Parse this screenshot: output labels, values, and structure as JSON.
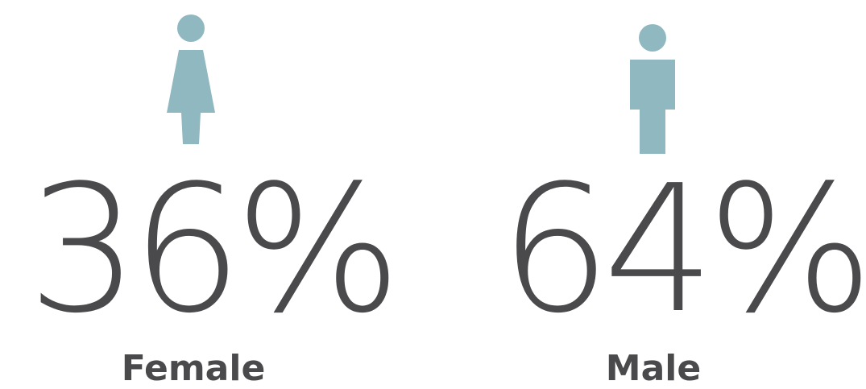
{
  "colors": {
    "icon": "#8fb8c1",
    "text": "#4a4a4c",
    "background": "#ffffff"
  },
  "chart_data": {
    "type": "pie",
    "categories": [
      "Female",
      "Male"
    ],
    "values": [
      36,
      64
    ],
    "value_labels": [
      "36%",
      "64%"
    ],
    "icons": [
      "female-person-icon",
      "male-person-icon"
    ],
    "title": "",
    "xlabel": "",
    "ylabel": ""
  }
}
